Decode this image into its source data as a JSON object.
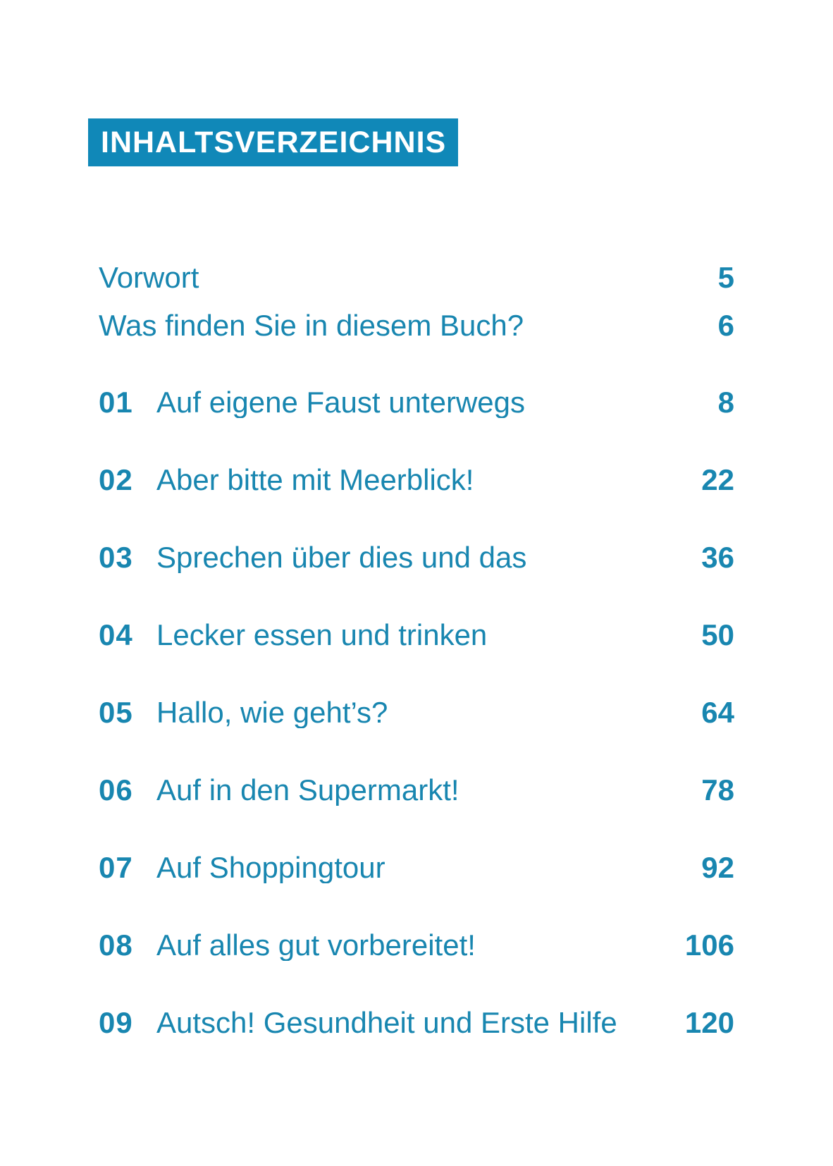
{
  "header": {
    "title": "INHALTSVERZEICHNIS"
  },
  "front_matter": [
    {
      "title": "Vorwort",
      "page": "5"
    },
    {
      "title": "Was finden Sie in diesem Buch?",
      "page": "6"
    }
  ],
  "chapters": [
    {
      "number": "01",
      "title": "Auf eigene Faust unterwegs",
      "page": "8"
    },
    {
      "number": "02",
      "title": "Aber bitte mit Meerblick!",
      "page": "22"
    },
    {
      "number": "03",
      "title": "Sprechen über dies und das",
      "page": "36"
    },
    {
      "number": "04",
      "title": "Lecker essen und trinken",
      "page": "50"
    },
    {
      "number": "05",
      "title": "Hallo, wie geht’s?",
      "page": "64"
    },
    {
      "number": "06",
      "title": "Auf in den Supermarkt!",
      "page": "78"
    },
    {
      "number": "07",
      "title": "Auf Shoppingtour",
      "page": "92"
    },
    {
      "number": "08",
      "title": "Auf alles gut vorbereitet!",
      "page": "106"
    },
    {
      "number": "09",
      "title": "Autsch! Gesundheit und Erste Hilfe",
      "page": "120"
    }
  ],
  "colors": {
    "accent_text": "#1886b0",
    "header_background": "#1088b8",
    "header_text": "#ffffff",
    "page_background": "#ffffff"
  }
}
